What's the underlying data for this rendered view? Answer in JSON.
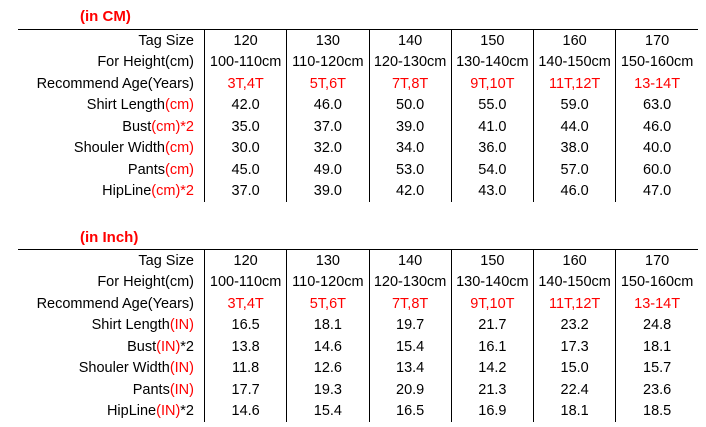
{
  "colors": {
    "accent": "#ff0000",
    "text": "#000000"
  },
  "sections": [
    {
      "title": "(in CM)",
      "rows": [
        {
          "label": [
            "Tag Size",
            ""
          ],
          "cells": [
            "120",
            "130",
            "140",
            "150",
            "160",
            "170"
          ],
          "red": false
        },
        {
          "label": [
            "For Height(cm)",
            ""
          ],
          "cells": [
            "100-110cm",
            "110-120cm",
            "120-130cm",
            "130-140cm",
            "140-150cm",
            "150-160cm"
          ],
          "red": false
        },
        {
          "label": [
            "Recommend Age(Years)",
            ""
          ],
          "cells": [
            "3T,4T",
            "5T,6T",
            "7T,8T",
            "9T,10T",
            "11T,12T",
            "13-14T"
          ],
          "red": true
        },
        {
          "label": [
            "Shirt Length",
            "(cm)"
          ],
          "cells": [
            "42.0",
            "46.0",
            "50.0",
            "55.0",
            "59.0",
            "63.0"
          ],
          "red": false
        },
        {
          "label": [
            "Bust",
            "(cm)*2"
          ],
          "cells": [
            "35.0",
            "37.0",
            "39.0",
            "41.0",
            "44.0",
            "46.0"
          ],
          "red": false
        },
        {
          "label": [
            "Shouler Width",
            "(cm)"
          ],
          "cells": [
            "30.0",
            "32.0",
            "34.0",
            "36.0",
            "38.0",
            "40.0"
          ],
          "red": false
        },
        {
          "label": [
            "Pants",
            "(cm)"
          ],
          "cells": [
            "45.0",
            "49.0",
            "53.0",
            "54.0",
            "57.0",
            "60.0"
          ],
          "red": false
        },
        {
          "label": [
            "HipLine",
            "(cm)*2"
          ],
          "cells": [
            "37.0",
            "39.0",
            "42.0",
            "43.0",
            "46.0",
            "47.0"
          ],
          "red": false
        }
      ]
    },
    {
      "title": "(in Inch)",
      "rows": [
        {
          "label": [
            "Tag Size",
            ""
          ],
          "cells": [
            "120",
            "130",
            "140",
            "150",
            "160",
            "170"
          ],
          "red": false
        },
        {
          "label": [
            "For Height(cm)",
            ""
          ],
          "cells": [
            "100-110cm",
            "110-120cm",
            "120-130cm",
            "130-140cm",
            "140-150cm",
            "150-160cm"
          ],
          "red": false
        },
        {
          "label": [
            "Recommend Age(Years)",
            ""
          ],
          "cells": [
            "3T,4T",
            "5T,6T",
            "7T,8T",
            "9T,10T",
            "11T,12T",
            "13-14T"
          ],
          "red": true
        },
        {
          "label": [
            "Shirt Length",
            "(IN)"
          ],
          "cells": [
            "16.5",
            "18.1",
            "19.7",
            "21.7",
            "23.2",
            "24.8"
          ],
          "red": false
        },
        {
          "label": [
            "Bust",
            "(IN)",
            "*2"
          ],
          "cells": [
            "13.8",
            "14.6",
            "15.4",
            "16.1",
            "17.3",
            "18.1"
          ],
          "red": false
        },
        {
          "label": [
            "Shouler Width",
            "(IN)"
          ],
          "cells": [
            "11.8",
            "12.6",
            "13.4",
            "14.2",
            "15.0",
            "15.7"
          ],
          "red": false
        },
        {
          "label": [
            "Pants",
            "(IN)"
          ],
          "cells": [
            "17.7",
            "19.3",
            "20.9",
            "21.3",
            "22.4",
            "23.6"
          ],
          "red": false
        },
        {
          "label": [
            "HipLine",
            "(IN)",
            "*2"
          ],
          "cells": [
            "14.6",
            "15.4",
            "16.5",
            "16.9",
            "18.1",
            "18.5"
          ],
          "red": false
        }
      ]
    }
  ]
}
